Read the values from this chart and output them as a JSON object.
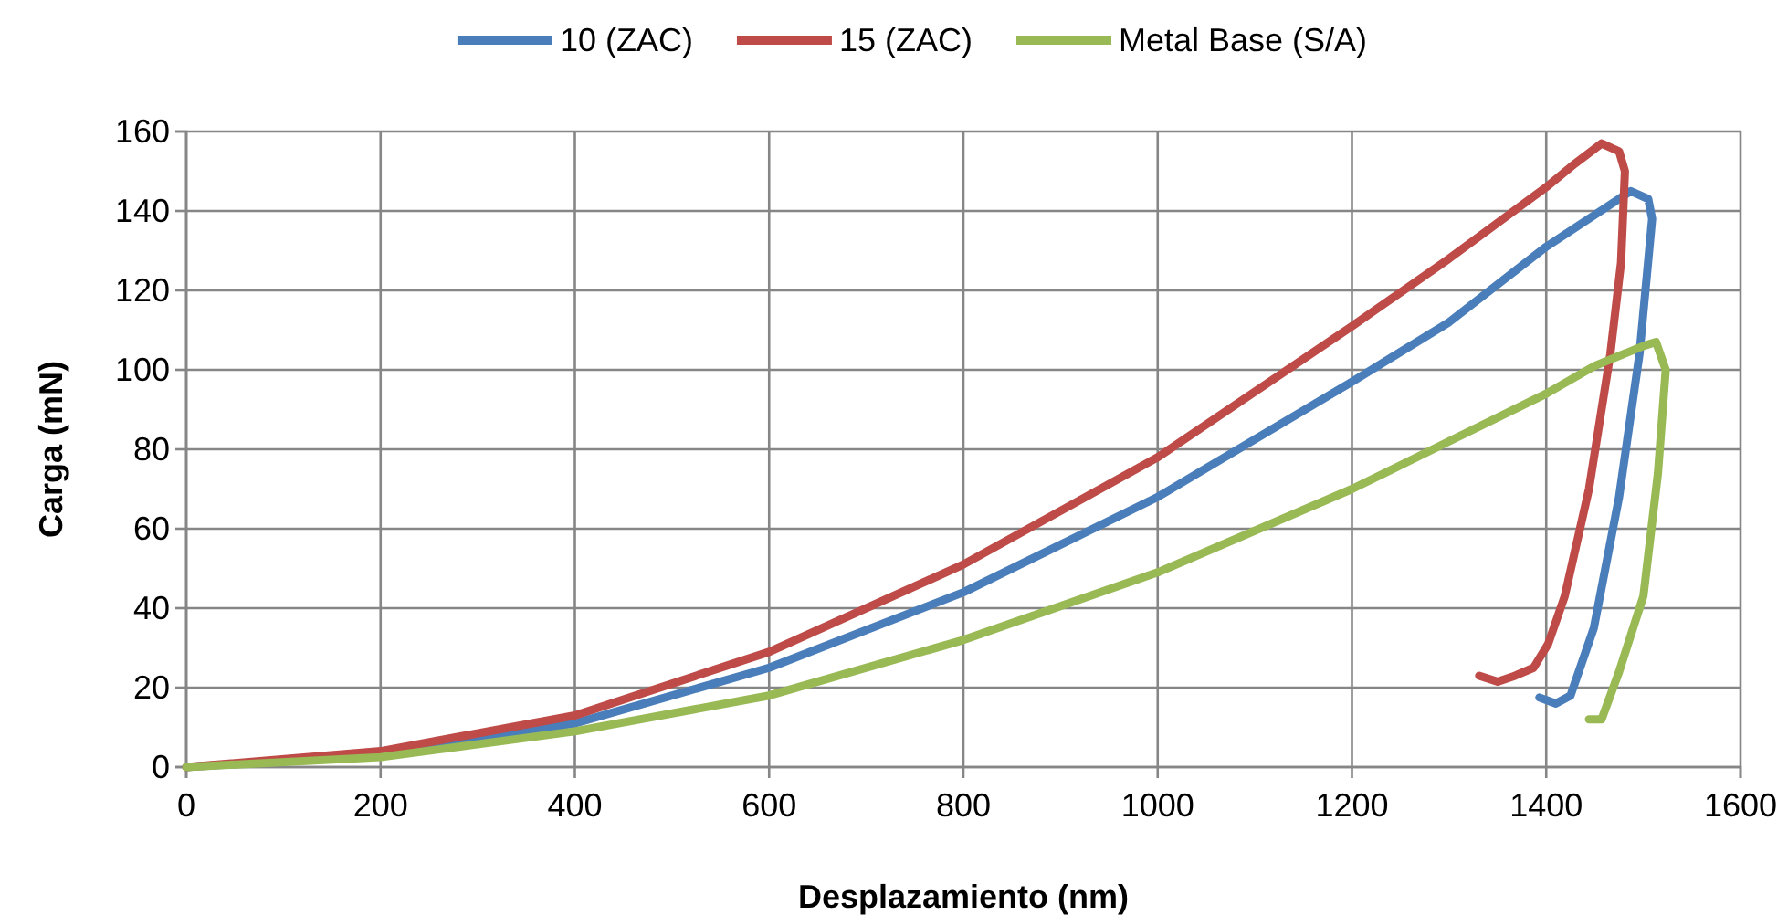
{
  "chart_data": {
    "type": "line",
    "xlabel": "Desplazamiento (nm)",
    "ylabel": "Carga (mN)",
    "xlim": [
      0,
      1600
    ],
    "xticks": [
      0,
      200,
      400,
      600,
      800,
      1000,
      1200,
      1400,
      1600
    ],
    "ylim": [
      0,
      160
    ],
    "yticks": [
      0,
      20,
      40,
      60,
      80,
      100,
      120,
      140,
      160
    ],
    "grid": true,
    "legend": "top",
    "marker": "none",
    "line_style": "solid",
    "series": [
      {
        "name": "10 (ZAC)",
        "color": "#4a7ebb",
        "x": [
          0,
          200,
          400,
          600,
          800,
          1000,
          1200,
          1300,
          1400,
          1450,
          1487,
          1505,
          1509,
          1496,
          1475,
          1449,
          1425,
          1410,
          1393
        ],
        "values": [
          0,
          3,
          11,
          25,
          44,
          68,
          97,
          112,
          131,
          139,
          145,
          143,
          138,
          104,
          68,
          35,
          18,
          16,
          17.5
        ]
      },
      {
        "name": "15 (ZAC)",
        "color": "#be4b48",
        "x": [
          0,
          200,
          400,
          600,
          800,
          1000,
          1200,
          1300,
          1400,
          1430,
          1457,
          1475,
          1481,
          1477,
          1466,
          1444,
          1419,
          1402,
          1387,
          1368,
          1350,
          1331
        ],
        "values": [
          0,
          4,
          13,
          29,
          51,
          78,
          111,
          128,
          146,
          152,
          157,
          155,
          150,
          127,
          104,
          70,
          43,
          31,
          25,
          23,
          21.5,
          23
        ]
      },
      {
        "name": "Metal Base (S/A)",
        "color": "#98b954",
        "x": [
          0,
          200,
          400,
          600,
          800,
          1000,
          1200,
          1300,
          1400,
          1450,
          1500,
          1513,
          1523,
          1515,
          1500,
          1475,
          1457,
          1444
        ],
        "values": [
          0,
          2.5,
          9,
          18,
          32,
          49,
          70,
          82,
          94,
          101,
          106,
          107,
          100,
          74,
          43,
          24,
          12,
          12
        ]
      }
    ]
  }
}
